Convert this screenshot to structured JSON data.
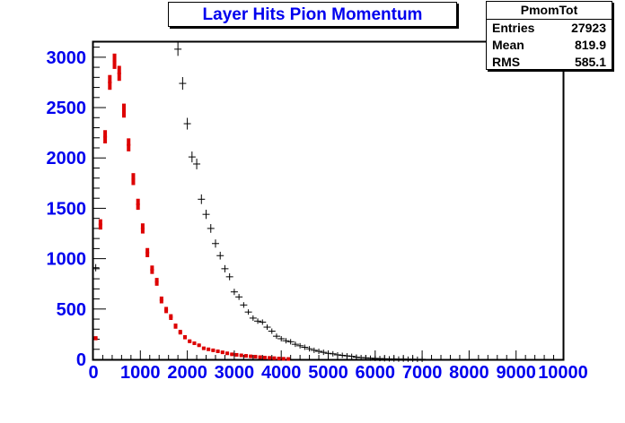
{
  "colors": {
    "accent": "#0000ee",
    "series_black": "#000000",
    "series_red": "#dd0000",
    "frame": "#000000"
  },
  "title_box": {
    "text": "Layer Hits Pion Momentum"
  },
  "stats": {
    "title": "PmomTot",
    "rows": [
      {
        "label": "Entries",
        "value": "27923"
      },
      {
        "label": "Mean",
        "value": "819.9"
      },
      {
        "label": "RMS",
        "value": "585.1"
      }
    ]
  },
  "chart_data": {
    "type": "scatter",
    "title": "Layer Hits Pion Momentum",
    "xlabel": "",
    "ylabel": "",
    "xlim": [
      0,
      10000
    ],
    "ylim": [
      0,
      3150
    ],
    "x_ticks": [
      0,
      1000,
      2000,
      3000,
      4000,
      5000,
      6000,
      7000,
      8000,
      9000,
      10000
    ],
    "y_ticks": [
      0,
      500,
      1000,
      1500,
      2000,
      2500,
      3000
    ],
    "grid": false,
    "legend": "none",
    "series": [
      {
        "color": "#000000",
        "marker": "cross",
        "points": [
          [
            50,
            910
          ],
          [
            1800,
            3080
          ],
          [
            1900,
            2740
          ],
          [
            2000,
            2340
          ],
          [
            2100,
            2010
          ],
          [
            2200,
            1940
          ],
          [
            2300,
            1590
          ],
          [
            2400,
            1440
          ],
          [
            2500,
            1300
          ],
          [
            2600,
            1150
          ],
          [
            2700,
            1030
          ],
          [
            2800,
            900
          ],
          [
            2900,
            820
          ],
          [
            3000,
            670
          ],
          [
            3100,
            620
          ],
          [
            3200,
            540
          ],
          [
            3300,
            470
          ],
          [
            3400,
            410
          ],
          [
            3500,
            380
          ],
          [
            3600,
            370
          ],
          [
            3700,
            320
          ],
          [
            3800,
            280
          ],
          [
            3900,
            230
          ],
          [
            4000,
            205
          ],
          [
            4100,
            185
          ],
          [
            4200,
            175
          ],
          [
            4300,
            150
          ],
          [
            4400,
            135
          ],
          [
            4500,
            120
          ],
          [
            4600,
            105
          ],
          [
            4700,
            90
          ],
          [
            4800,
            80
          ],
          [
            4900,
            70
          ],
          [
            5000,
            60
          ],
          [
            5100,
            55
          ],
          [
            5200,
            45
          ],
          [
            5300,
            40
          ],
          [
            5400,
            35
          ],
          [
            5500,
            30
          ],
          [
            5600,
            22
          ],
          [
            5700,
            18
          ],
          [
            5800,
            15
          ],
          [
            5900,
            12
          ],
          [
            6000,
            10
          ],
          [
            6100,
            8
          ],
          [
            6200,
            6
          ],
          [
            6300,
            5
          ],
          [
            6400,
            4
          ],
          [
            6500,
            3
          ],
          [
            6600,
            3
          ],
          [
            6700,
            2
          ],
          [
            6800,
            2
          ],
          [
            6900,
            1
          ],
          [
            7000,
            1
          ]
        ]
      },
      {
        "color": "#dd0000",
        "marker": "errorbar",
        "points": [
          [
            50,
            210
          ],
          [
            150,
            1340
          ],
          [
            250,
            2210
          ],
          [
            350,
            2750
          ],
          [
            450,
            2960
          ],
          [
            550,
            2840
          ],
          [
            650,
            2470
          ],
          [
            750,
            2130
          ],
          [
            850,
            1790
          ],
          [
            950,
            1540
          ],
          [
            1050,
            1300
          ],
          [
            1150,
            1060
          ],
          [
            1250,
            890
          ],
          [
            1350,
            770
          ],
          [
            1450,
            590
          ],
          [
            1550,
            490
          ],
          [
            1650,
            420
          ],
          [
            1750,
            330
          ],
          [
            1850,
            270
          ],
          [
            1950,
            220
          ],
          [
            2050,
            180
          ],
          [
            2150,
            160
          ],
          [
            2250,
            140
          ],
          [
            2350,
            110
          ],
          [
            2450,
            100
          ],
          [
            2550,
            90
          ],
          [
            2650,
            80
          ],
          [
            2750,
            70
          ],
          [
            2850,
            60
          ],
          [
            2950,
            50
          ],
          [
            3050,
            45
          ],
          [
            3150,
            40
          ],
          [
            3250,
            35
          ],
          [
            3350,
            30
          ],
          [
            3450,
            27
          ],
          [
            3550,
            22
          ],
          [
            3650,
            18
          ],
          [
            3750,
            15
          ],
          [
            3850,
            12
          ],
          [
            3950,
            9
          ],
          [
            4050,
            6
          ],
          [
            4150,
            4
          ]
        ]
      }
    ]
  }
}
